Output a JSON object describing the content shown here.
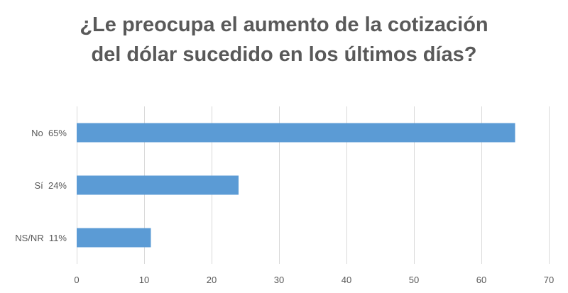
{
  "chart_data": {
    "type": "bar",
    "orientation": "horizontal",
    "title_lines": [
      "¿Le preocupa el aumento de la cotización",
      "del dólar sucedido en los últimos días?"
    ],
    "categories": [
      "No  65%",
      "Sí  24%",
      "NS/NR  11%"
    ],
    "values": [
      65,
      24,
      11
    ],
    "xlim": [
      0,
      70
    ],
    "xticks": [
      0,
      10,
      20,
      30,
      40,
      50,
      60,
      70
    ],
    "grid": true,
    "legend": "none",
    "bar_color": "#5B9BD5",
    "grid_color": "#D9D9D9"
  }
}
